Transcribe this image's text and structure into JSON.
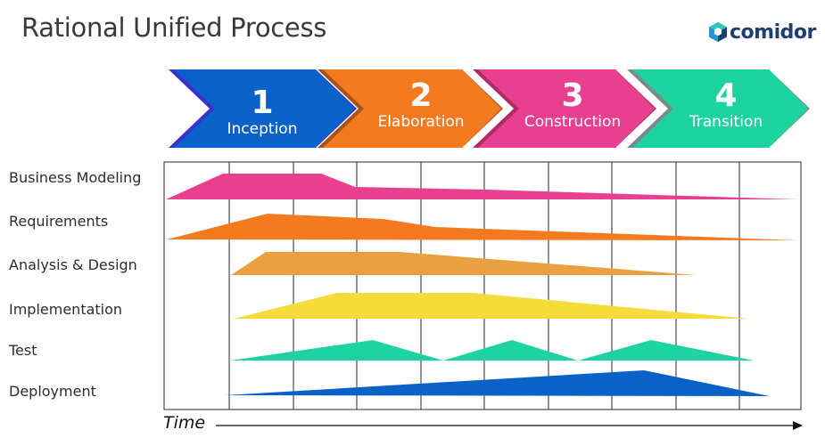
{
  "title": "Rational Unified Process",
  "logo": {
    "text": "comidor",
    "icon": "hexagon-cube-icon",
    "color": "#1d3f73"
  },
  "phases": [
    {
      "number": "1",
      "name": "Inception",
      "color": "#0a62c8",
      "shadow": "#3a2fd0"
    },
    {
      "number": "2",
      "name": "Elaboration",
      "color": "#f47a20",
      "shadow": "#a8521a"
    },
    {
      "number": "3",
      "name": "Construction",
      "color": "#e8408f",
      "shadow": "#b02a68"
    },
    {
      "number": "4",
      "name": "Transition",
      "color": "#1dd4a0",
      "shadow": "#7a8a86"
    }
  ],
  "disciplines": [
    {
      "name": "Business Modeling",
      "color": "#e8408f"
    },
    {
      "name": "Requirements",
      "color": "#f47a20"
    },
    {
      "name": "Analysis & Design",
      "color": "#e8a040"
    },
    {
      "name": "Implementation",
      "color": "#f5dc3a"
    },
    {
      "name": "Test",
      "color": "#1dd4a0"
    },
    {
      "name": "Deployment",
      "color": "#0a62c8"
    }
  ],
  "axis": {
    "label": "Time"
  }
}
